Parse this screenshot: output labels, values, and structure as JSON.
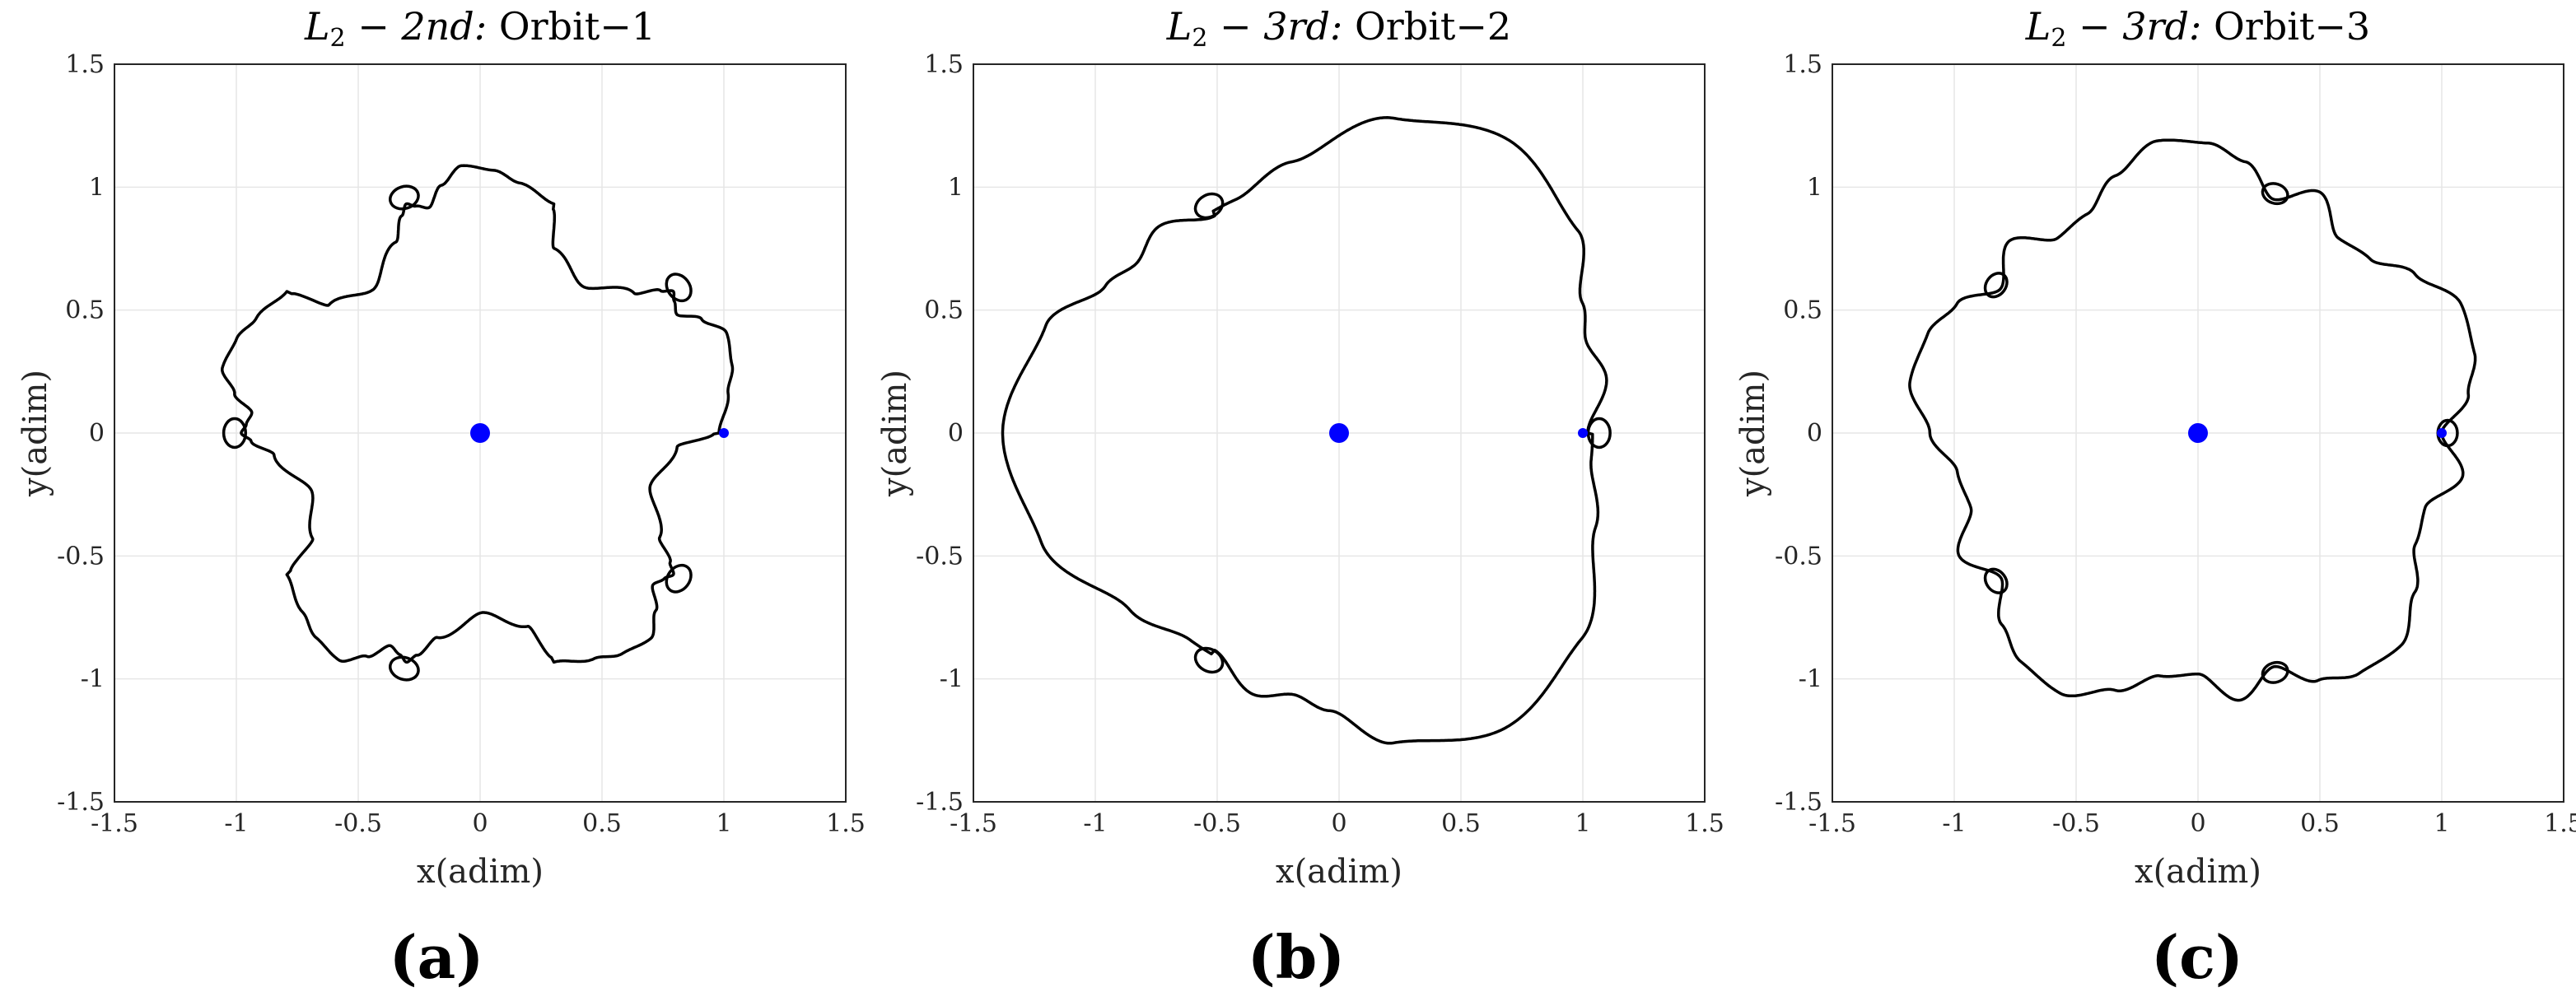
{
  "figure": {
    "panels": [
      {
        "id": "a",
        "title": {
          "subscript_base": "L",
          "subscript": "2",
          "suffix": " − 2nd: ",
          "name": "Orbit−1"
        },
        "caption": "(a)"
      },
      {
        "id": "b",
        "title": {
          "subscript_base": "L",
          "subscript": "2",
          "suffix": " − 3rd: ",
          "name": "Orbit−2"
        },
        "caption": "(b)"
      },
      {
        "id": "c",
        "title": {
          "subscript_base": "L",
          "subscript": "2",
          "suffix": " − 3rd: ",
          "name": "Orbit−3"
        },
        "caption": "(c)"
      }
    ]
  },
  "chart_data": [
    {
      "type": "line",
      "title": "L2 − 2nd: Orbit−1",
      "xlabel": "x(adim)",
      "ylabel": "y(adim)",
      "xlim": [
        -1.5,
        1.5
      ],
      "ylim": [
        -1.5,
        1.5
      ],
      "xticks": [
        -1.5,
        -1,
        -0.5,
        0,
        0.5,
        1,
        1.5
      ],
      "yticks": [
        -1.5,
        -1,
        -0.5,
        0,
        0.5,
        1,
        1.5
      ],
      "xtick_labels": [
        "-1.5",
        "-1",
        "-0.5",
        "0",
        "0.5",
        "1",
        "1.5"
      ],
      "ytick_labels": [
        "-1.5",
        "-1",
        "-0.5",
        "0",
        "0.5",
        "1",
        "1.5"
      ],
      "grid": true,
      "line_color": "#000000",
      "primaries": [
        {
          "name": "large primary",
          "x": 0,
          "y": 0,
          "color": "#0000ff",
          "size": "large"
        },
        {
          "name": "small primary",
          "x": 1,
          "y": 0,
          "color": "#0000ff",
          "size": "small"
        }
      ],
      "orbit": {
        "symmetry": 5,
        "rotation_deg": 0,
        "radial_profile": [
          [
            0,
            0.98
          ],
          [
            9,
            1.03
          ],
          [
            15,
            1.07
          ],
          [
            22,
            1.09
          ],
          [
            27,
            1.02
          ],
          [
            31,
            0.94
          ],
          [
            34,
            0.96
          ],
          [
            36,
            0.98
          ],
          [
            38,
            0.94
          ],
          [
            42,
            0.85
          ],
          [
            55,
            0.73
          ],
          [
            68,
            0.81
          ],
          [
            72,
            0.96
          ]
        ],
        "loop_center_deg": 36,
        "loop_radius": 0.045
      }
    },
    {
      "type": "line",
      "title": "L2 − 3rd: Orbit−2",
      "xlabel": "x(adim)",
      "ylabel": "y(adim)",
      "xlim": [
        -1.5,
        1.5
      ],
      "ylim": [
        -1.5,
        1.5
      ],
      "xticks": [
        -1.5,
        -1,
        -0.5,
        0,
        0.5,
        1,
        1.5
      ],
      "yticks": [
        -1.5,
        -1,
        -0.5,
        0,
        0.5,
        1,
        1.5
      ],
      "xtick_labels": [
        "-1.5",
        "-1",
        "-0.5",
        "0",
        "0.5",
        "1",
        "1.5"
      ],
      "ytick_labels": [
        "-1.5",
        "-1",
        "-0.5",
        "0",
        "0.5",
        "1",
        "1.5"
      ],
      "grid": true,
      "line_color": "#000000",
      "primaries": [
        {
          "name": "large primary",
          "x": 0,
          "y": 0,
          "color": "#0000ff",
          "size": "large"
        },
        {
          "name": "small primary",
          "x": 1,
          "y": 0,
          "color": "#0000ff",
          "size": "small"
        }
      ],
      "orbit": {
        "symmetry": 3,
        "rotation_deg": 0,
        "radial_profile": [
          [
            0,
            1.02
          ],
          [
            12,
            1.12
          ],
          [
            20,
            1.08
          ],
          [
            28,
            1.13
          ],
          [
            40,
            1.28
          ],
          [
            60,
            1.38
          ],
          [
            80,
            1.3
          ],
          [
            100,
            1.12
          ],
          [
            114,
            1.04
          ],
          [
            120,
            1.04
          ]
        ],
        "loop_center_deg": 120,
        "loop_radius": 0.045
      }
    },
    {
      "type": "line",
      "title": "L2 − 3rd: Orbit−3",
      "xlabel": "x(adim)",
      "ylabel": "y(adim)",
      "xlim": [
        -1.5,
        1.5
      ],
      "ylim": [
        -1.5,
        1.5
      ],
      "xticks": [
        -1.5,
        -1,
        -0.5,
        0,
        0.5,
        1,
        1.5
      ],
      "yticks": [
        -1.5,
        -1,
        -0.5,
        0,
        0.5,
        1,
        1.5
      ],
      "xtick_labels": [
        "-1.5",
        "-1",
        "-0.5",
        "0",
        "0.5",
        "1",
        "1.5"
      ],
      "ytick_labels": [
        "-1.5",
        "-1",
        "-0.5",
        "0",
        "0.5",
        "1",
        "1.5"
      ],
      "grid": true,
      "line_color": "#000000",
      "primaries": [
        {
          "name": "large primary",
          "x": 0,
          "y": 0,
          "color": "#0000ff",
          "size": "large"
        },
        {
          "name": "small primary",
          "x": 1,
          "y": 0,
          "color": "#0000ff",
          "size": "small"
        }
      ],
      "orbit": {
        "symmetry": 5,
        "rotation_deg": 0,
        "radial_profile": [
          [
            0,
            1.0
          ],
          [
            8,
            1.12
          ],
          [
            16,
            1.18
          ],
          [
            26,
            1.2
          ],
          [
            36,
            1.1
          ],
          [
            45,
            1.0
          ],
          [
            54,
            0.98
          ],
          [
            63,
            1.1
          ],
          [
            72,
            1.0
          ]
        ],
        "loop_center_deg": 72,
        "loop_radius": 0.04
      }
    }
  ]
}
